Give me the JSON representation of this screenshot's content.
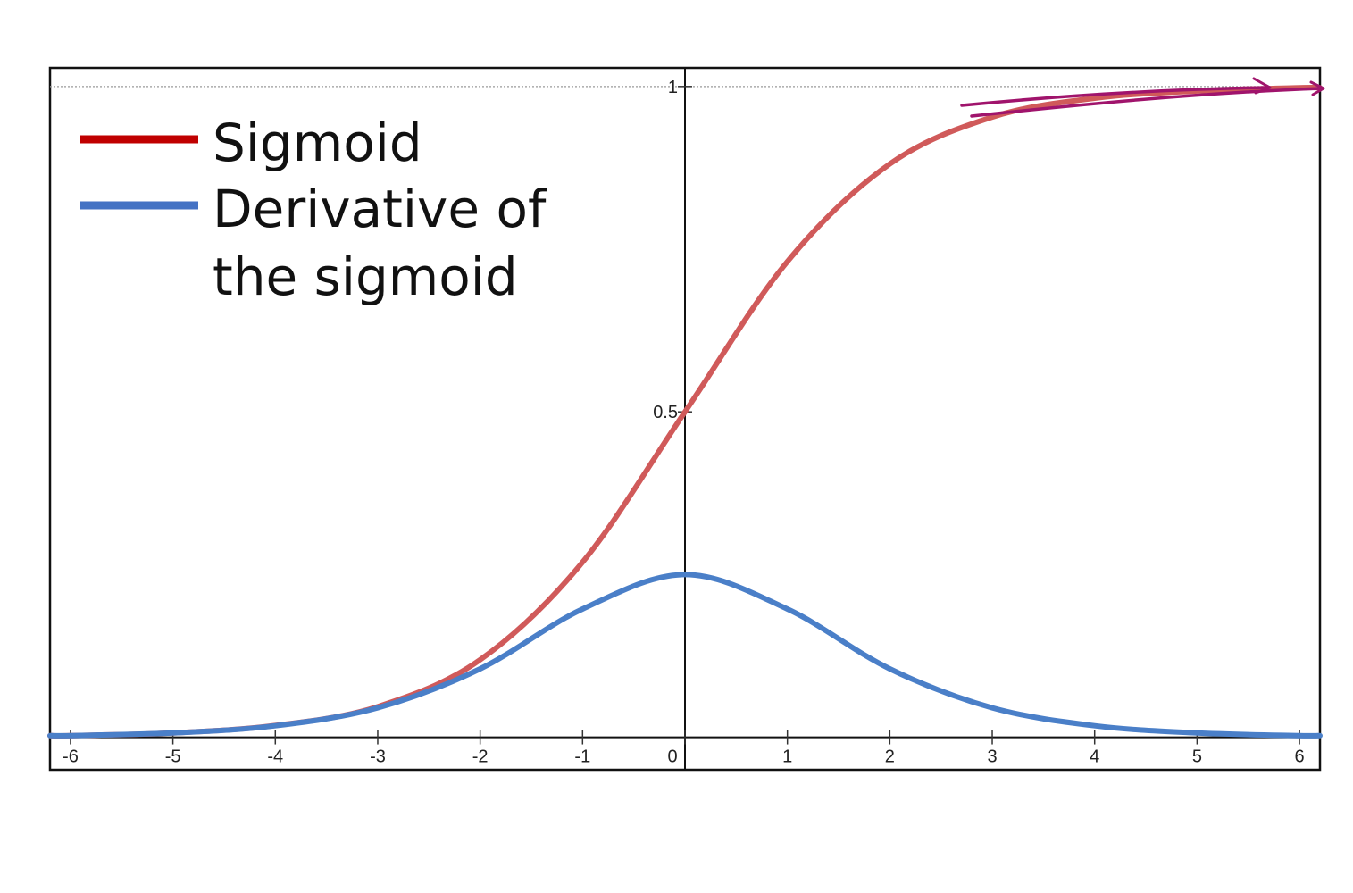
{
  "chart_data": {
    "type": "line",
    "xlim": [
      -6.2,
      6.2
    ],
    "ylim": [
      -0.05,
      1.0286
    ],
    "x_ticks": [
      -6,
      -5,
      -4,
      -3,
      -2,
      -1,
      0,
      1,
      2,
      3,
      4,
      5,
      6
    ],
    "x_tick_labels": [
      "-6",
      "-5",
      "-4",
      "-3",
      "-2",
      "-1",
      "0",
      "1",
      "2",
      "3",
      "4",
      "5",
      "6"
    ],
    "y_ticks": [
      0.5,
      1
    ],
    "y_tick_labels": [
      "0.5",
      "1"
    ],
    "grid": false,
    "dashed_reference_line_y": 1,
    "legend": {
      "placement": "top-left",
      "entries": [
        {
          "series": 0,
          "lines": [
            "Sigmoid"
          ]
        },
        {
          "series": 1,
          "lines": [
            "Derivative of",
            "the sigmoid"
          ]
        }
      ]
    },
    "series": [
      {
        "name": "Sigmoid",
        "color": "#d05a5a",
        "legend_color": "#c00000",
        "x": [
          -6,
          -5,
          -4,
          -3,
          -2,
          -1,
          0,
          1,
          2,
          3,
          4,
          5,
          6
        ],
        "y": [
          0.0025,
          0.0067,
          0.018,
          0.047,
          0.119,
          0.269,
          0.5,
          0.731,
          0.881,
          0.953,
          0.982,
          0.993,
          0.998
        ]
      },
      {
        "name": "Derivative of the sigmoid",
        "color": "#4a7fc8",
        "legend_color": "#4472c4",
        "x": [
          -6,
          -5,
          -4,
          -3,
          -2,
          -1,
          0,
          1,
          2,
          3,
          4,
          5,
          6
        ],
        "y": [
          0.0025,
          0.0066,
          0.0177,
          0.0452,
          0.105,
          0.197,
          0.25,
          0.197,
          0.105,
          0.0452,
          0.0177,
          0.0066,
          0.0025
        ]
      }
    ],
    "annotation": {
      "type": "hand-drawn-arrows",
      "color": "#a0146c",
      "near": "sigmoid approaching 1"
    }
  }
}
